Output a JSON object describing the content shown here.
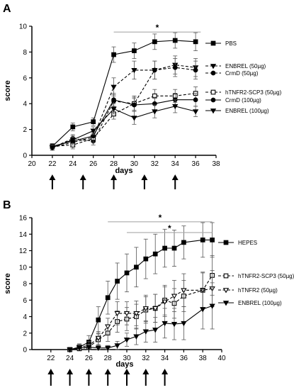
{
  "chart_data": [
    {
      "panel": "A",
      "type": "line",
      "xlabel": "days",
      "ylabel": "score",
      "xlim": [
        20,
        38
      ],
      "ylim": [
        0,
        10
      ],
      "xticks": [
        20,
        22,
        24,
        26,
        28,
        30,
        32,
        34,
        36,
        38
      ],
      "yticks": [
        0,
        2,
        4,
        6,
        8,
        10
      ],
      "x": [
        22,
        24,
        26,
        28,
        30,
        32,
        34,
        36
      ],
      "arrows": [
        22,
        25,
        28,
        31,
        34
      ],
      "significance": [
        {
          "label": "*",
          "x_start": 28,
          "x_end": 36.5,
          "y": 9.55
        }
      ],
      "grid": false,
      "legend_position": "right",
      "series": [
        {
          "name": "PBS",
          "marker": "square",
          "fill": "filled",
          "dash": "solid",
          "values": [
            0.7,
            2.2,
            2.6,
            7.8,
            8.1,
            8.8,
            8.9,
            8.8
          ],
          "errors": [
            0.2,
            0.3,
            0.3,
            0.6,
            0.6,
            0.6,
            0.6,
            0.7
          ]
        },
        {
          "name": "ENBREL (50µg)",
          "marker": "triangle-down",
          "fill": "filled",
          "dash": "dashed",
          "values": [
            0.6,
            1.0,
            1.4,
            5.3,
            6.6,
            6.6,
            7.0,
            6.8
          ],
          "errors": [
            0.2,
            0.3,
            0.3,
            0.7,
            0.7,
            0.7,
            0.7,
            0.7
          ]
        },
        {
          "name": "CrmD (50µg)",
          "marker": "circle",
          "fill": "filled",
          "dash": "dashed",
          "values": [
            0.6,
            1.3,
            1.1,
            4.2,
            4.0,
            6.6,
            6.8,
            6.6
          ],
          "errors": [
            0.2,
            0.3,
            0.3,
            0.5,
            0.6,
            0.7,
            0.7,
            0.7
          ]
        },
        {
          "name": "hTNFR2-SCP3 (50µg)",
          "marker": "square",
          "fill": "open",
          "dash": "dashed",
          "values": [
            0.7,
            0.8,
            1.3,
            3.2,
            4.0,
            4.6,
            4.6,
            4.8
          ],
          "errors": [
            0.2,
            0.3,
            0.3,
            0.4,
            0.5,
            0.5,
            0.5,
            0.5
          ]
        },
        {
          "name": "CrmD (100µg)",
          "marker": "circle",
          "fill": "filled",
          "dash": "solid",
          "values": [
            0.7,
            1.1,
            1.5,
            4.3,
            3.9,
            4.0,
            4.3,
            4.3
          ],
          "errors": [
            0.2,
            0.3,
            0.3,
            0.5,
            0.5,
            0.5,
            0.5,
            0.5
          ]
        },
        {
          "name": "ENBREL (100µg)",
          "marker": "triangle-down",
          "fill": "filled",
          "dash": "solid",
          "values": [
            0.6,
            1.2,
            1.9,
            3.6,
            2.9,
            3.4,
            3.8,
            3.4
          ],
          "errors": [
            0.2,
            0.3,
            0.3,
            0.4,
            0.5,
            0.5,
            0.5,
            0.4
          ]
        }
      ]
    },
    {
      "panel": "B",
      "type": "line",
      "xlabel": "days",
      "ylabel": "score",
      "xlim": [
        20,
        40
      ],
      "ylim": [
        0,
        16
      ],
      "xticks": [
        22,
        24,
        26,
        28,
        30,
        32,
        34,
        36,
        38,
        40
      ],
      "yticks": [
        0,
        2,
        4,
        6,
        8,
        10,
        12,
        14,
        16
      ],
      "x": [
        24,
        25,
        26,
        27,
        28,
        29,
        30,
        31,
        32,
        33,
        34,
        35,
        36,
        38,
        39
      ],
      "arrows": [
        22,
        24,
        26,
        28,
        30,
        32,
        34
      ],
      "significance": [
        {
          "label": "*",
          "x_start": 28,
          "x_end": 39,
          "y": 15.5
        },
        {
          "label": "*",
          "x_start": 30,
          "x_end": 39,
          "y": 14.2
        }
      ],
      "grid": false,
      "legend_position": "right",
      "series": [
        {
          "name": "HEPES",
          "marker": "square",
          "fill": "filled",
          "dash": "solid",
          "values": [
            0.0,
            0.3,
            0.9,
            3.6,
            6.3,
            8.3,
            9.3,
            10.0,
            11.0,
            11.6,
            12.3,
            12.3,
            13.0,
            13.3,
            13.3
          ],
          "errors": [
            0.2,
            0.4,
            0.8,
            1.6,
            2.0,
            2.2,
            2.3,
            2.4,
            2.4,
            2.4,
            2.3,
            2.2,
            2.0,
            2.1,
            2.1
          ]
        },
        {
          "name": "hTNFR2-SCP3 (50µg)",
          "marker": "square",
          "fill": "open",
          "dash": "dashed",
          "values": [
            0.0,
            0.1,
            0.3,
            1.2,
            2.0,
            3.4,
            3.7,
            4.0,
            4.8,
            5.0,
            6.0,
            5.6,
            6.5,
            7.2,
            9.0
          ],
          "errors": [
            0.1,
            0.2,
            0.4,
            0.7,
            1.0,
            1.3,
            1.4,
            1.5,
            1.6,
            1.7,
            1.8,
            1.8,
            1.9,
            2.2,
            2.4
          ]
        },
        {
          "name": "hTNFR2 (50µg)",
          "marker": "triangle-down",
          "fill": "open",
          "dash": "dashed",
          "values": [
            0.0,
            0.3,
            0.5,
            1.4,
            2.8,
            4.4,
            4.4,
            4.4,
            5.0,
            5.0,
            5.8,
            6.5,
            7.2,
            7.2,
            7.4
          ],
          "errors": [
            0.1,
            0.3,
            0.5,
            0.8,
            1.0,
            1.4,
            1.4,
            1.5,
            1.6,
            1.7,
            1.8,
            1.9,
            2.0,
            2.1,
            2.2
          ]
        },
        {
          "name": "ENBREL (100µg)",
          "marker": "triangle-down",
          "fill": "filled",
          "dash": "solid",
          "values": [
            0.0,
            0.2,
            0.3,
            0.2,
            0.2,
            0.5,
            1.2,
            1.6,
            2.2,
            2.4,
            3.2,
            3.1,
            3.2,
            4.9,
            5.3
          ],
          "errors": [
            0.1,
            0.2,
            0.3,
            0.3,
            0.3,
            0.5,
            0.8,
            1.0,
            1.3,
            1.5,
            1.8,
            1.9,
            2.0,
            2.4,
            2.8
          ]
        }
      ]
    }
  ]
}
